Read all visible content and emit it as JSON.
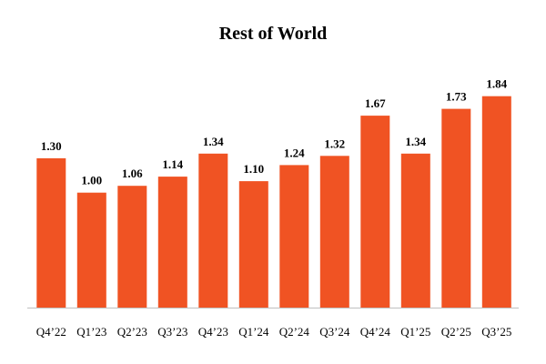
{
  "chart_data": {
    "type": "bar",
    "title": "Rest of World",
    "xlabel": "",
    "ylabel": "",
    "categories": [
      "Q4’22",
      "Q1’23",
      "Q2’23",
      "Q3’23",
      "Q4’23",
      "Q1’24",
      "Q2’24",
      "Q3’24",
      "Q4’24",
      "Q1’25",
      "Q2’25",
      "Q3’25"
    ],
    "values": [
      1.3,
      1.0,
      1.06,
      1.14,
      1.34,
      1.1,
      1.24,
      1.32,
      1.67,
      1.34,
      1.73,
      1.84
    ],
    "value_labels": [
      "1.30",
      "1.00",
      "1.06",
      "1.14",
      "1.34",
      "1.10",
      "1.24",
      "1.32",
      "1.67",
      "1.34",
      "1.73",
      "1.84"
    ],
    "ylim": [
      0,
      1.98
    ],
    "grid": false,
    "legend": "none",
    "bar_color": "#F05323",
    "axis_color": "#BFBFBF"
  }
}
